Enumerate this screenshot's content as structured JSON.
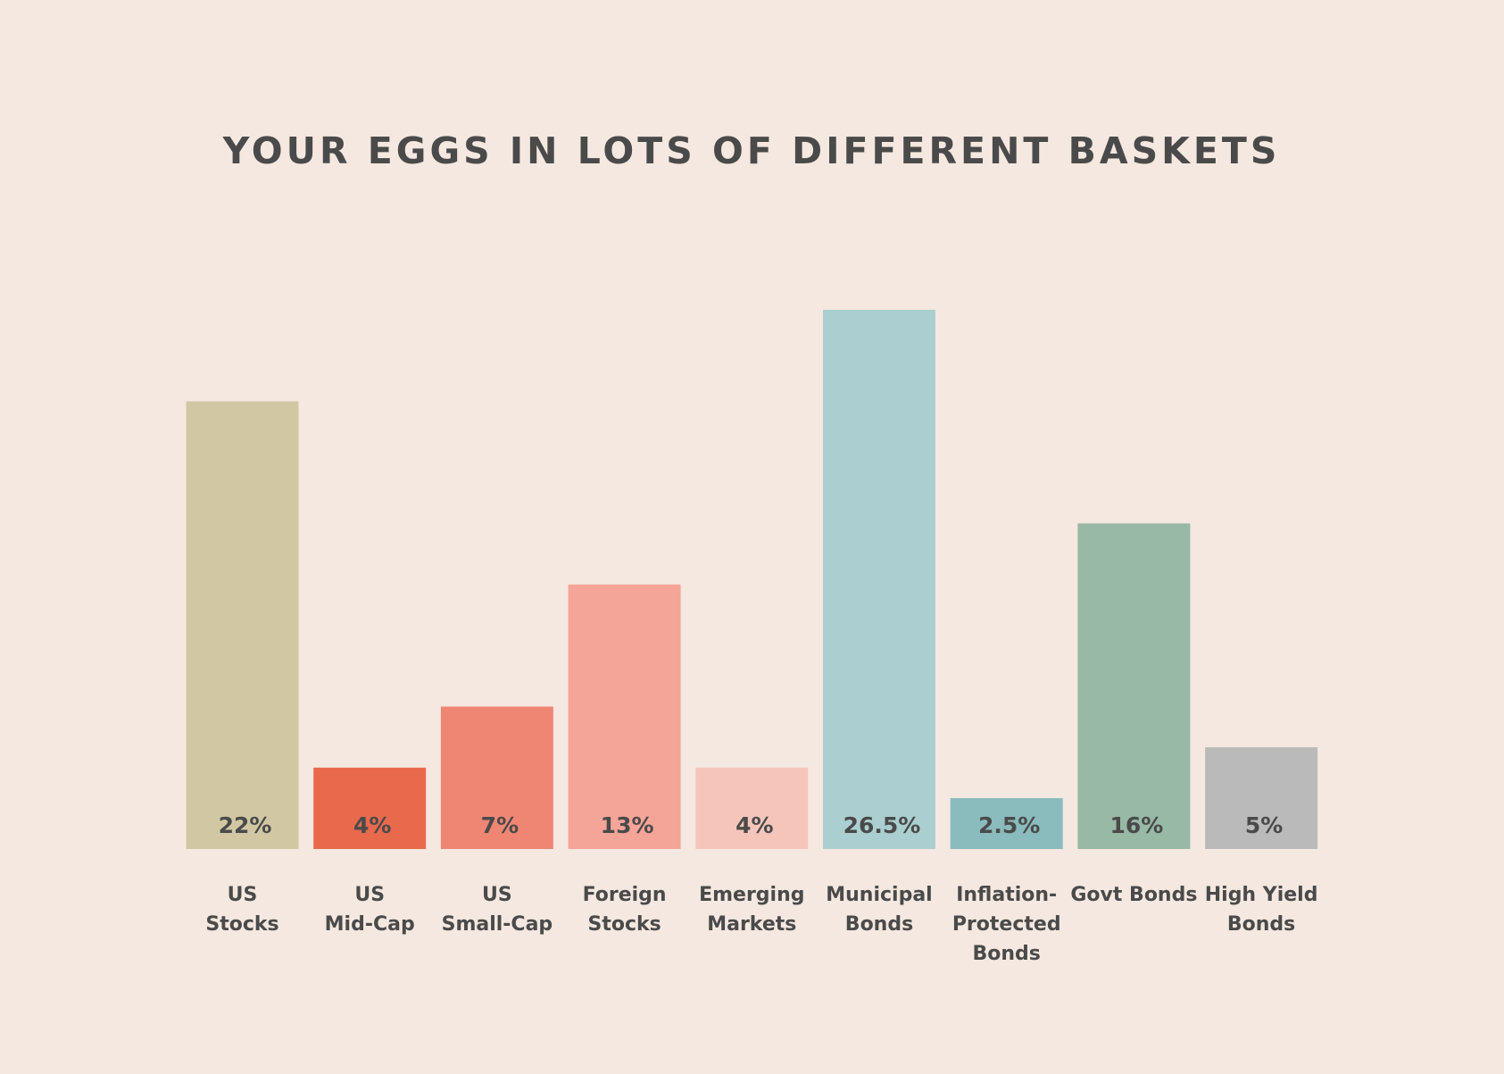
{
  "chart_data": {
    "type": "bar",
    "title": "YOUR EGGS IN LOTS OF DIFFERENT BASKETS",
    "categories": [
      [
        "US",
        "Stocks"
      ],
      [
        "US",
        "Mid-Cap"
      ],
      [
        "US",
        "Small-Cap"
      ],
      [
        "Foreign",
        "Stocks"
      ],
      [
        "Emerging",
        "Markets"
      ],
      [
        "Municipal",
        "Bonds"
      ],
      [
        "Inflation-",
        "Protected",
        "Bonds"
      ],
      [
        "Govt Bonds"
      ],
      [
        "High Yield",
        "Bonds"
      ]
    ],
    "values": [
      22,
      4,
      7,
      13,
      4,
      26.5,
      2.5,
      16,
      5
    ],
    "value_labels": [
      "22%",
      "4%",
      "7%",
      "13%",
      "4%",
      "26.5%",
      "2.5%",
      "16%",
      "5%"
    ],
    "colors": [
      "#d1c8a3",
      "#e9694c",
      "#ef8674",
      "#f5a498",
      "#f6c5ba",
      "#abcfd0",
      "#8abbbd",
      "#98b9a6",
      "#bababa"
    ]
  }
}
